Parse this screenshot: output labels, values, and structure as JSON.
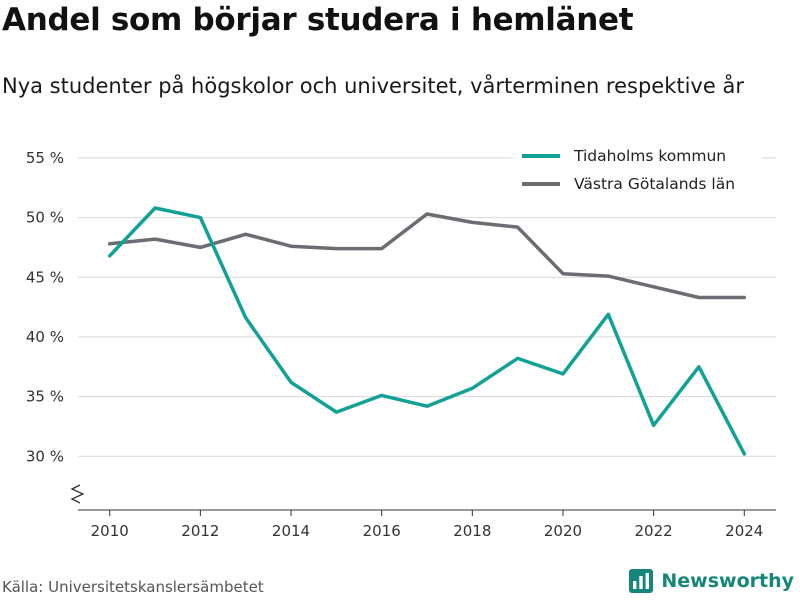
{
  "title": "Andel som börjar studera i hemlänet",
  "subtitle": "Nya studenter på högskolor och universitet, vårterminen respektive år",
  "source": "Källa: Universitetskanslersämbetet",
  "brand": "Newsworthy",
  "colors": {
    "accent": "#12a195",
    "secondary": "#6d6c72",
    "brand": "#16867a"
  },
  "chart_data": {
    "type": "line",
    "title": "Andel som börjar studera i hemlänet",
    "subtitle": "Nya studenter på högskolor och universitet, vårterminen respektive år",
    "x": [
      2010,
      2011,
      2012,
      2013,
      2014,
      2015,
      2016,
      2017,
      2018,
      2019,
      2020,
      2021,
      2022,
      2023,
      2024
    ],
    "xticks": [
      2010,
      2012,
      2014,
      2016,
      2018,
      2020,
      2022,
      2024
    ],
    "yticks": [
      30,
      35,
      40,
      45,
      50,
      55
    ],
    "ytick_labels": [
      "30 %",
      "35 %",
      "40 %",
      "45 %",
      "50 %",
      "55 %"
    ],
    "xlim": [
      2009.3,
      2024.7
    ],
    "ylim": [
      25.5,
      56.5
    ],
    "y_axis_break": true,
    "grid": "horizontal",
    "legend_position": "top-right",
    "series": [
      {
        "name": "Tidaholms kommun",
        "color": "#12a195",
        "values": [
          46.8,
          50.8,
          50.0,
          41.6,
          36.2,
          33.7,
          35.1,
          34.2,
          35.7,
          38.2,
          36.9,
          41.9,
          32.6,
          37.5,
          30.2
        ]
      },
      {
        "name": "Västra Götalands län",
        "color": "#6d6c72",
        "values": [
          47.8,
          48.2,
          47.5,
          48.6,
          47.6,
          47.4,
          47.4,
          50.3,
          49.6,
          49.2,
          45.3,
          45.1,
          44.2,
          43.3,
          43.3
        ]
      }
    ]
  }
}
